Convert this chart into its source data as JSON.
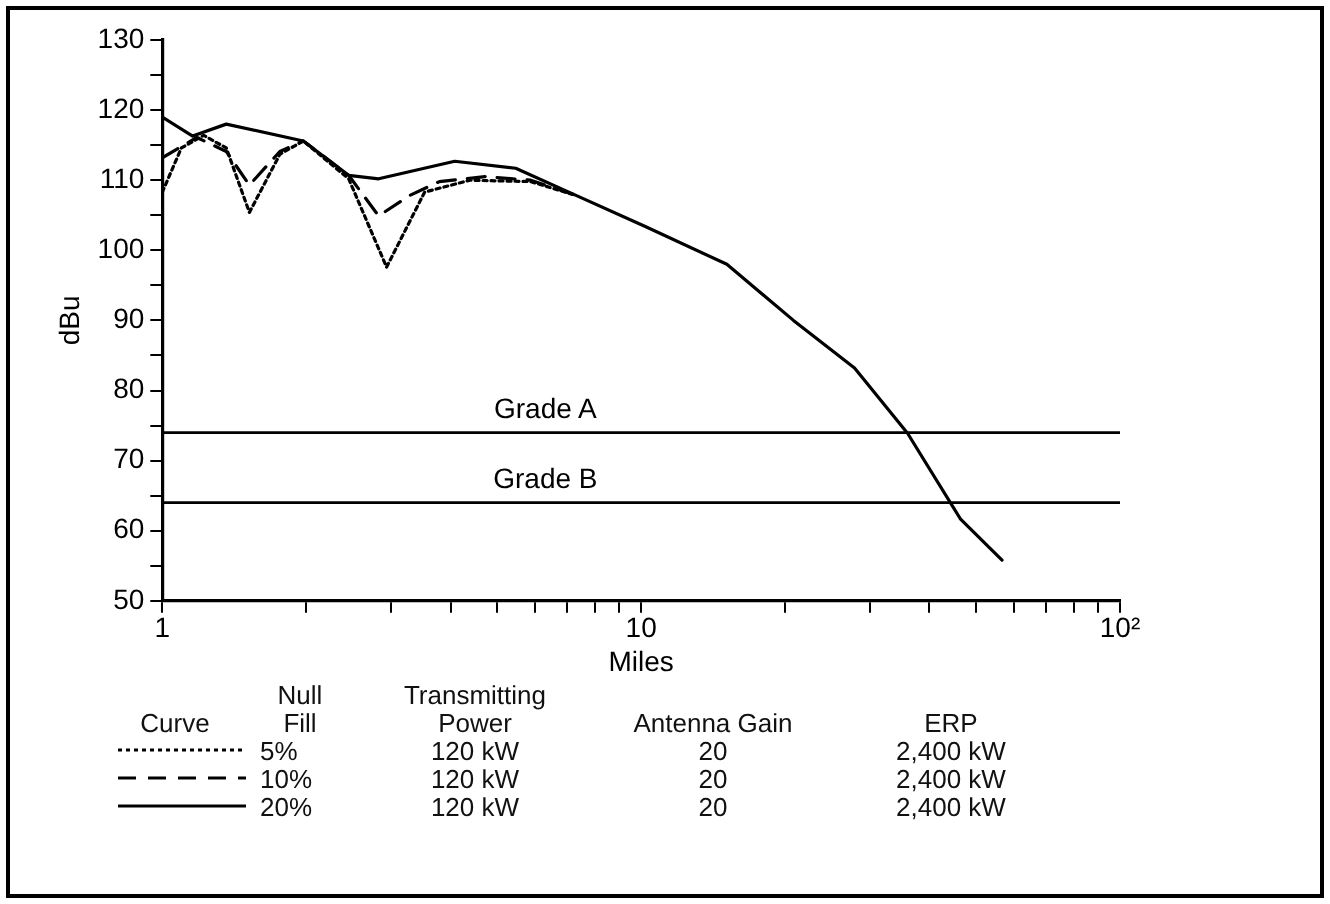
{
  "chart_data": {
    "type": "line",
    "xlabel": "Miles",
    "ylabel": "dBu",
    "x": [
      1,
      1.157,
      1.36,
      1.97,
      2.45,
      2.83,
      4.08,
      5.47,
      7.33,
      10.2,
      15.1,
      20.8,
      27.9,
      36,
      46.4,
      56.7
    ],
    "series": [
      {
        "name": "5%",
        "color": "#000000",
        "line_style": "dotted",
        "x": [
          1,
          1.096,
          1.22,
          1.36,
          1.52,
          1.76,
          1.97,
          2.45,
          2.94,
          3.53,
          4.39,
          5.88,
          7.33
        ],
        "values": [
          108.3,
          114.6,
          116.4,
          114.6,
          105.4,
          113.7,
          115.6,
          110.2,
          97.6,
          108.3,
          110,
          109.8,
          107.8
        ]
      },
      {
        "name": "10%",
        "color": "#000000",
        "line_style": "dashed",
        "x": [
          1,
          1.18,
          1.36,
          1.52,
          1.76,
          1.97,
          2.45,
          2.83,
          3.28,
          3.79,
          4.72,
          5.88,
          7.33
        ],
        "values": [
          113.2,
          116.1,
          114.1,
          109.3,
          114.1,
          115.6,
          110.7,
          104.9,
          107.8,
          109.8,
          110.5,
          110,
          107.8
        ]
      },
      {
        "name": "20%",
        "color": "#000000",
        "line_style": "solid",
        "values": [
          119,
          116.3,
          118,
          115.6,
          110.7,
          110.2,
          112.7,
          111.7,
          107.8,
          103.4,
          98,
          90,
          83.2,
          73.9,
          61.7,
          55.8
        ]
      }
    ],
    "log": "x",
    "xlim": [
      1,
      100
    ],
    "xticks": [
      1,
      {
        "value": 2,
        "label": null
      },
      {
        "value": 3,
        "label": null
      },
      {
        "value": 4,
        "label": null
      },
      {
        "value": 5,
        "label": null
      },
      {
        "value": 6,
        "label": null
      },
      {
        "value": 7,
        "label": null
      },
      {
        "value": 8,
        "label": null
      },
      {
        "value": 9,
        "label": null
      },
      10,
      {
        "value": 20,
        "label": null
      },
      {
        "value": 30,
        "label": null
      },
      {
        "value": 40,
        "label": null
      },
      {
        "value": 50,
        "label": null
      },
      {
        "value": 60,
        "label": null
      },
      {
        "value": 70,
        "label": null
      },
      {
        "value": 80,
        "label": null
      },
      {
        "value": 90,
        "label": null
      },
      {
        "value": 100,
        "label": "10²"
      }
    ],
    "ylim": [
      50,
      130
    ],
    "yticks": [
      50,
      {
        "value": 55,
        "label": null
      },
      60,
      {
        "value": 65,
        "label": null
      },
      70,
      {
        "value": 75,
        "label": null
      },
      80,
      {
        "value": 85,
        "label": null
      },
      90,
      {
        "value": 95,
        "label": null
      },
      100,
      {
        "value": 105,
        "label": null
      },
      110,
      {
        "value": 115,
        "label": null
      },
      120,
      {
        "value": 125,
        "label": null
      },
      130
    ],
    "ref_lines": [
      {
        "axis": "y",
        "value": 74,
        "label": "Grade A",
        "color": "#000000"
      },
      {
        "axis": "y",
        "value": 64,
        "label": "Grade B",
        "color": "#000000"
      }
    ],
    "grid": false,
    "legend": "bottom",
    "legend_title": "Curve",
    "annotations": [
      "Null Fill",
      "Transmitting Power",
      "Antenna Gain",
      "ERP",
      "120 kW",
      "20",
      "2,400 kW",
      "120 kW",
      "20",
      "2,400 kW",
      "120 kW",
      "20",
      "2,400 kW"
    ]
  }
}
